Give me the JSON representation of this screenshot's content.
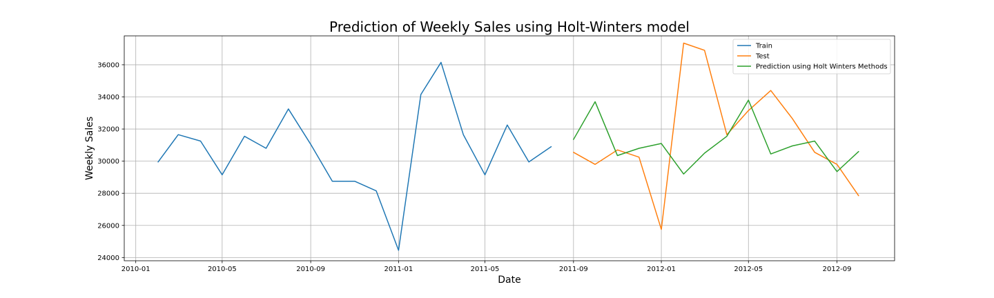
{
  "chart_data": {
    "type": "line",
    "title": "Prediction of Weekly Sales using Holt-Winters model",
    "xlabel": "Date",
    "ylabel": "Weekly Sales",
    "xlim": [
      "2009-12-16",
      "2012-11-20"
    ],
    "ylim": [
      23800,
      37800
    ],
    "grid": true,
    "legend_position": "top-right",
    "x_ticks": [
      "2010-01",
      "2010-05",
      "2010-09",
      "2011-01",
      "2011-05",
      "2011-09",
      "2012-01",
      "2012-05",
      "2012-09"
    ],
    "y_ticks": [
      24000,
      26000,
      28000,
      30000,
      32000,
      34000,
      36000
    ],
    "series": [
      {
        "name": "Train",
        "color": "#1f77b4",
        "x": [
          "2010-02-01",
          "2010-03-01",
          "2010-04-01",
          "2010-05-01",
          "2010-06-01",
          "2010-07-01",
          "2010-08-01",
          "2010-09-01",
          "2010-10-01",
          "2010-11-01",
          "2010-12-01",
          "2011-01-01",
          "2011-02-01",
          "2011-03-01",
          "2011-04-01",
          "2011-05-01",
          "2011-06-01",
          "2011-07-01",
          "2011-08-01"
        ],
        "values": [
          29950,
          31650,
          31250,
          29150,
          31550,
          30800,
          33250,
          31050,
          28750,
          28750,
          28150,
          24450,
          34150,
          36150,
          31650,
          29150,
          32250,
          29950,
          30900
        ]
      },
      {
        "name": "Test",
        "color": "#ff7f0e",
        "x": [
          "2011-09-01",
          "2011-10-01",
          "2011-11-01",
          "2011-12-01",
          "2012-01-01",
          "2012-02-01",
          "2012-03-01",
          "2012-04-01",
          "2012-05-01",
          "2012-06-01",
          "2012-07-01",
          "2012-08-01",
          "2012-09-01",
          "2012-10-01"
        ],
        "values": [
          30550,
          29800,
          30700,
          30250,
          25750,
          37350,
          36900,
          31650,
          33150,
          34400,
          32650,
          30550,
          29800,
          27850
        ]
      },
      {
        "name": "Prediction using Holt Winters Methods",
        "color": "#2ca02c",
        "x": [
          "2011-09-01",
          "2011-10-01",
          "2011-11-01",
          "2011-12-01",
          "2012-01-01",
          "2012-02-01",
          "2012-03-01",
          "2012-04-01",
          "2012-05-01",
          "2012-06-01",
          "2012-07-01",
          "2012-08-01",
          "2012-09-01",
          "2012-10-01"
        ],
        "values": [
          31350,
          33700,
          30350,
          30800,
          31100,
          29200,
          30500,
          31550,
          33800,
          30450,
          30950,
          31250,
          29350,
          30600
        ]
      }
    ]
  }
}
